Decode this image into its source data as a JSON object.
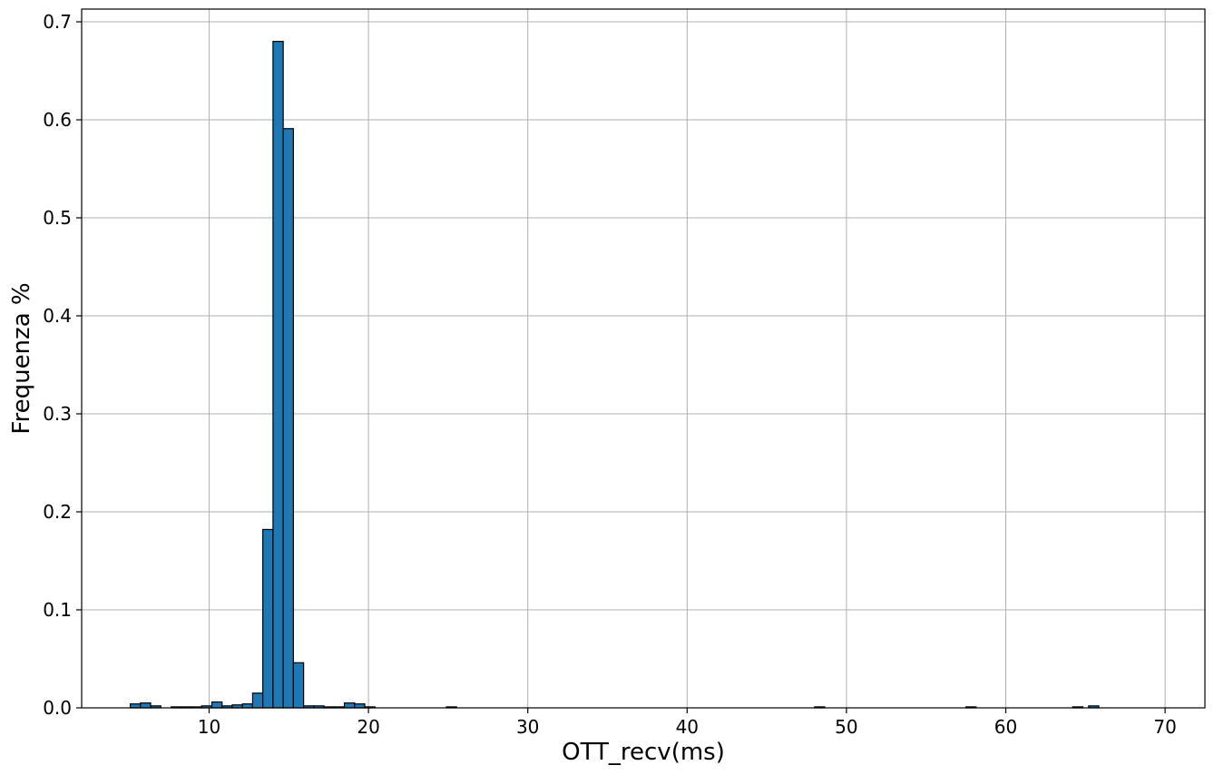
{
  "chart_data": {
    "type": "bar",
    "subtype": "histogram",
    "title": "",
    "xlabel": "OTT_recv(ms)",
    "ylabel": "Frequenza %",
    "xlim": [
      2.0,
      72.5
    ],
    "ylim": [
      0,
      0.713
    ],
    "xticks": [
      10,
      20,
      30,
      40,
      50,
      60,
      70
    ],
    "yticks": [
      0.0,
      0.1,
      0.2,
      0.3,
      0.4,
      0.5,
      0.6,
      0.7
    ],
    "xtick_labels": [
      "10",
      "20",
      "30",
      "40",
      "50",
      "60",
      "70"
    ],
    "ytick_labels": [
      "0.0",
      "0.1",
      "0.2",
      "0.3",
      "0.4",
      "0.5",
      "0.6",
      "0.7"
    ],
    "grid": true,
    "bar_color": "#1f77b4",
    "edge_color": "#000000",
    "bin_width": 0.64,
    "bins": [
      {
        "x0": 5.05,
        "value": 0.004
      },
      {
        "x0": 5.69,
        "value": 0.005
      },
      {
        "x0": 6.33,
        "value": 0.002
      },
      {
        "x0": 7.61,
        "value": 0.001
      },
      {
        "x0": 8.25,
        "value": 0.001
      },
      {
        "x0": 8.89,
        "value": 0.001
      },
      {
        "x0": 9.53,
        "value": 0.002
      },
      {
        "x0": 10.17,
        "value": 0.006
      },
      {
        "x0": 10.81,
        "value": 0.002
      },
      {
        "x0": 11.45,
        "value": 0.003
      },
      {
        "x0": 12.09,
        "value": 0.004
      },
      {
        "x0": 12.73,
        "value": 0.015
      },
      {
        "x0": 13.37,
        "value": 0.182
      },
      {
        "x0": 14.01,
        "value": 0.68
      },
      {
        "x0": 14.65,
        "value": 0.591
      },
      {
        "x0": 15.29,
        "value": 0.046
      },
      {
        "x0": 15.93,
        "value": 0.002
      },
      {
        "x0": 16.57,
        "value": 0.002
      },
      {
        "x0": 17.21,
        "value": 0.001
      },
      {
        "x0": 17.85,
        "value": 0.001
      },
      {
        "x0": 18.49,
        "value": 0.005
      },
      {
        "x0": 19.13,
        "value": 0.004
      },
      {
        "x0": 19.77,
        "value": 0.001
      },
      {
        "x0": 24.89,
        "value": 0.001
      },
      {
        "x0": 48.0,
        "value": 0.001
      },
      {
        "x0": 57.5,
        "value": 0.001
      },
      {
        "x0": 64.2,
        "value": 0.001
      },
      {
        "x0": 65.2,
        "value": 0.002
      }
    ]
  }
}
